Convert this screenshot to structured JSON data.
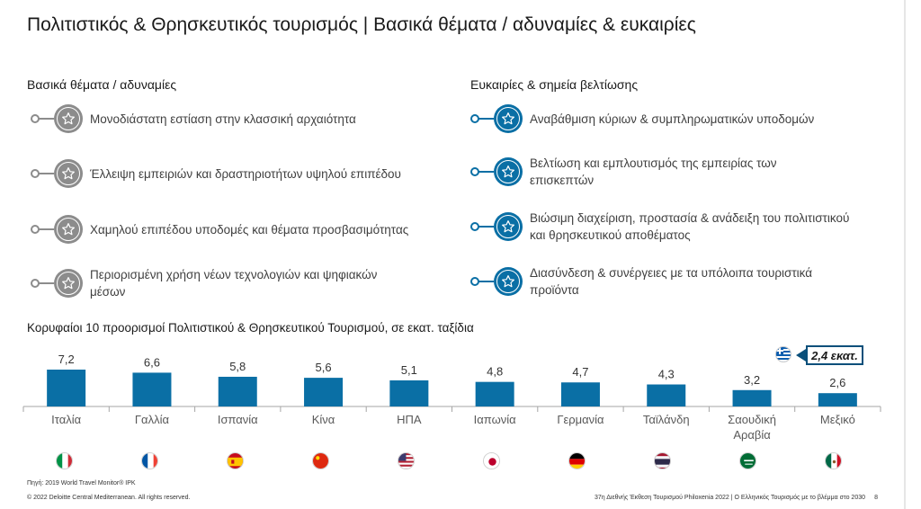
{
  "title": "Πολιτιστικός & Θρησκευτικός τουρισμός | Βασικά θέματα / αδυναμίες & ευκαιρίες",
  "weaknesses": {
    "heading": "Βασικά θέματα / αδυναμίες",
    "items": [
      "Μονοδιάστατη εστίαση στην κλασσική αρχαιότητα",
      "Έλλειψη εμπειριών και δραστηριοτήτων υψηλού επιπέδου",
      "Χαμηλού επιπέδου υποδομές και θέματα προσβασιμότητας",
      "Περιορισμένη χρήση νέων τεχνολογιών και ψηφιακών μέσων"
    ]
  },
  "opportunities": {
    "heading": "Ευκαιρίες & σημεία βελτίωσης",
    "items": [
      "Αναβάθμιση κύριων & συμπληρωματικών υποδομών",
      "Βελτίωση και εμπλουτισμός της εμπειρίας των επισκεπτών",
      "Βιώσιμη διαχείριση, προστασία & ανάδειξη του πολιτιστικού και θρησκευτικού αποθέματος",
      "Διασύνδεση & συνέργειες με τα υπόλοιπα τουριστικά προϊόντα"
    ]
  },
  "chart_title": "Κορυφαίοι 10 προορισμοί Πολιτιστικού & Θρησκευτικού Τουρισμού, σε εκατ. ταξίδια",
  "chart_data": {
    "type": "bar",
    "title": "Κορυφαίοι 10 προορισμοί Πολιτιστικού & Θρησκευτικού Τουρισμού, σε εκατ. ταξίδια",
    "categories": [
      "Ιταλία",
      "Γαλλία",
      "Ισπανία",
      "Κίνα",
      "ΗΠΑ",
      "Ιαπωνία",
      "Γερμανία",
      "Ταϊλάνδη",
      "Σαουδική Αραβία",
      "Μεξικό"
    ],
    "values": [
      7.2,
      6.6,
      5.8,
      5.6,
      5.1,
      4.8,
      4.7,
      4.3,
      3.2,
      2.6
    ],
    "data_labels": [
      "7,2",
      "6,6",
      "5,8",
      "5,6",
      "5,1",
      "4,8",
      "4,7",
      "4,3",
      "3,2",
      "2,6"
    ],
    "ylim": [
      0,
      7.2
    ],
    "grid": false,
    "bar_color": "#0a6fa5"
  },
  "flags": [
    "italy-flag-icon",
    "france-flag-icon",
    "spain-flag-icon",
    "china-flag-icon",
    "usa-flag-icon",
    "japan-flag-icon",
    "germany-flag-icon",
    "thailand-flag-icon",
    "saudi-arabia-flag-icon",
    "mexico-flag-icon"
  ],
  "greece_callout": "2,4 εκατ.",
  "source": "Πηγή: 2019 World Travel Monitor® IPK",
  "footer_left": "© 2022 Deloitte Central Mediterranean. All rights reserved.",
  "footer_right": "37η Διεθνής Έκθεση Τουρισμού Philoxenia 2022 | Ο Ελληνικός Τουρισμός με το βλέμμα στο 2030",
  "page_number": "8",
  "colors": {
    "accent": "#0a6fa5",
    "weak": "#8c8c8c",
    "callout_border": "#0a4f7a"
  }
}
